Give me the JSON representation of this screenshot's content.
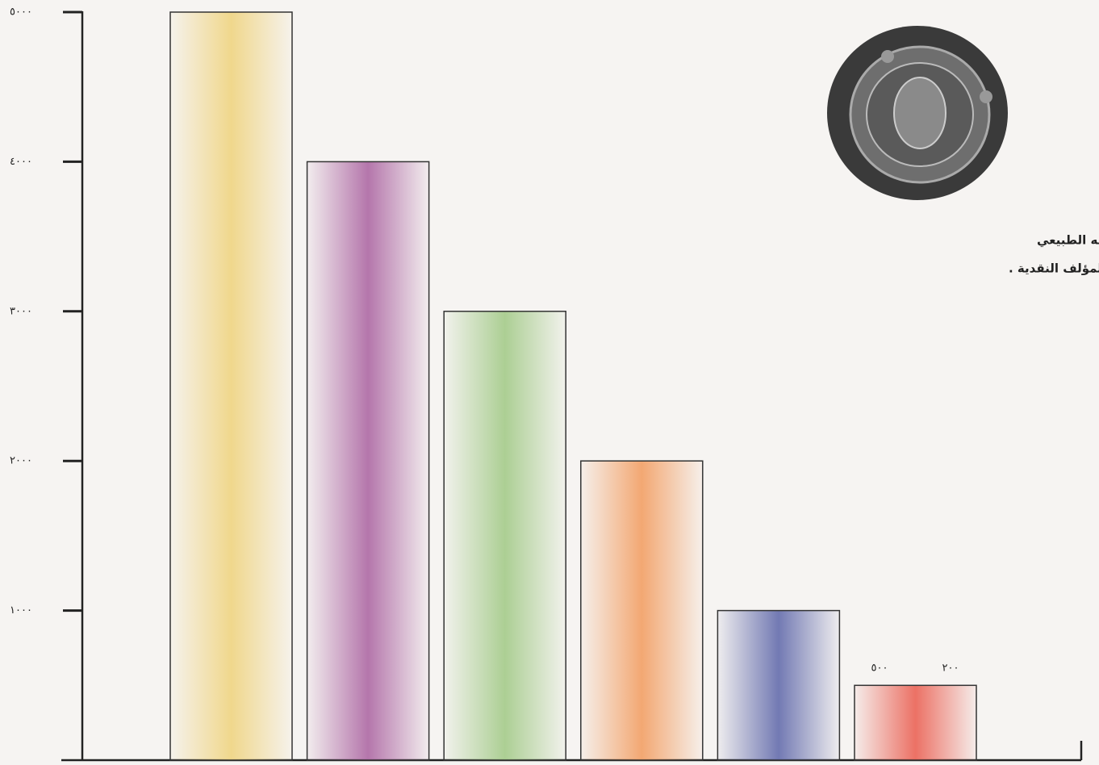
{
  "chart_data": {
    "type": "bar",
    "categories": [
      null,
      null,
      null,
      null,
      null,
      null
    ],
    "values": [
      5000,
      4000,
      3000,
      2000,
      1000,
      500
    ],
    "colors": [
      "#efd27a",
      "#a9609f",
      "#9fc883",
      "#f29a5c",
      "#5b64a8",
      "#ea5a4c"
    ],
    "ylim": [
      0,
      5000
    ],
    "yticks": [
      {
        "value": 1000,
        "label": "١٠٠٠"
      },
      {
        "value": 2000,
        "label": "٢٠٠٠"
      },
      {
        "value": 3000,
        "label": "٣٠٠٠"
      },
      {
        "value": 4000,
        "label": "٤٠٠٠"
      },
      {
        "value": 5000,
        "label": "٥٠٠٠"
      }
    ],
    "grid": false,
    "annotations": [
      "٥٠٠",
      "٢٠٠"
    ],
    "caption": [
      "درهم ساساني بحجمه الطبيعي",
      "مجموعة المؤلف النقدية ."
    ]
  }
}
